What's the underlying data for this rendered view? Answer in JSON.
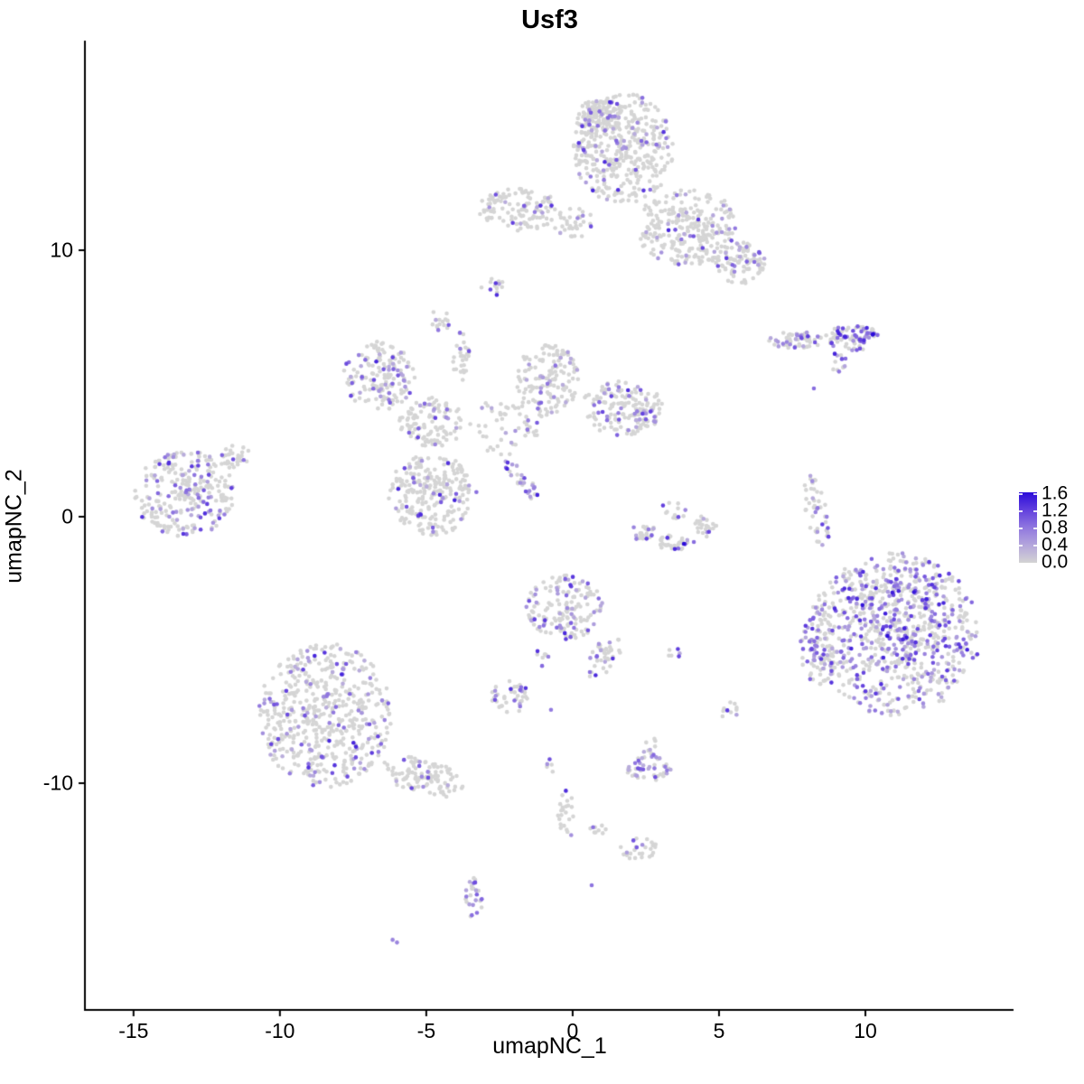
{
  "title": "Usf3",
  "chart_data": {
    "type": "scatter",
    "title": "Usf3",
    "xlabel": "umapNC_1",
    "ylabel": "umapNC_2",
    "xlim": [
      -16.63,
      15.06
    ],
    "ylim": [
      -18.51,
      17.86
    ],
    "xticks": [
      -15,
      -10,
      -5,
      0,
      5,
      10
    ],
    "xtick_labels": [
      "-15",
      "-10",
      "-5",
      "0",
      "5",
      "10"
    ],
    "yticks": [
      -10,
      0,
      10
    ],
    "ytick_labels": [
      "-10",
      "0",
      "10"
    ],
    "grid": false,
    "legend_position": "right",
    "colorbar": {
      "ticks": [
        1.6,
        1.2,
        0.8,
        0.4,
        0.0
      ],
      "tick_labels": [
        "1.6",
        "1.2",
        "0.8",
        "0.4",
        "0.0"
      ],
      "vmin": 0.0,
      "vmax": 1.65,
      "gradient_stops": [
        "#D3D3D3",
        "#B4A6DC",
        "#9077DF",
        "#6240DE",
        "#2B0CD9"
      ]
    },
    "point_color_zero": "#D5D5D5",
    "point_radius": 2.3,
    "clusters": [
      {
        "x": 1.73,
        "y": 13.8,
        "rx": 1.7,
        "ry": 2.1,
        "n": 430,
        "frac": 0.13
      },
      {
        "x": 0.8,
        "y": 14.98,
        "rx": 0.77,
        "ry": 0.75,
        "n": 80,
        "frac": 0.12
      },
      {
        "x": 3.95,
        "y": 10.85,
        "rx": 1.79,
        "ry": 1.42,
        "n": 260,
        "frac": 0.12
      },
      {
        "x": 5.74,
        "y": 9.49,
        "rx": 0.86,
        "ry": 0.81,
        "n": 90,
        "frac": 0.18
      },
      {
        "x": -1.82,
        "y": 11.53,
        "rx": 1.42,
        "ry": 0.81,
        "n": 120,
        "frac": 0.09
      },
      {
        "x": 0.06,
        "y": 11.02,
        "rx": 0.74,
        "ry": 0.54,
        "n": 35,
        "frac": 0.1
      },
      {
        "x": -2.72,
        "y": 8.64,
        "rx": 0.4,
        "ry": 0.34,
        "n": 14,
        "frac": 0.3
      },
      {
        "x": -4.54,
        "y": 7.36,
        "rx": 0.37,
        "ry": 0.41,
        "n": 15,
        "frac": 0.35
      },
      {
        "x": 7.72,
        "y": 6.61,
        "rx": 1.02,
        "ry": 0.34,
        "n": 55,
        "frac": 0.35
      },
      {
        "x": 9.57,
        "y": 6.71,
        "rx": 0.93,
        "ry": 0.47,
        "n": 85,
        "frac": 0.55,
        "hot": true
      },
      {
        "x": 9.07,
        "y": 5.8,
        "rx": 0.34,
        "ry": 0.37,
        "n": 12,
        "frac": 0.5
      },
      {
        "x": -6.6,
        "y": 5.29,
        "rx": 1.23,
        "ry": 1.29,
        "n": 160,
        "frac": 0.22
      },
      {
        "x": -4.81,
        "y": 3.53,
        "rx": 1.11,
        "ry": 0.95,
        "n": 110,
        "frac": 0.1
      },
      {
        "x": -3.8,
        "y": 6.03,
        "rx": 0.31,
        "ry": 0.95,
        "n": 30,
        "frac": 0.05
      },
      {
        "x": -0.86,
        "y": 5.15,
        "rx": 1.05,
        "ry": 1.42,
        "n": 150,
        "frac": 0.13
      },
      {
        "x": 1.67,
        "y": 4.07,
        "rx": 1.42,
        "ry": 1.02,
        "n": 150,
        "frac": 0.18
      },
      {
        "x": 2.72,
        "y": 3.86,
        "rx": 0.37,
        "ry": 0.41,
        "n": 14,
        "frac": 0.65,
        "hot": true
      },
      {
        "x": -4.81,
        "y": 0.81,
        "rx": 1.54,
        "ry": 1.53,
        "n": 250,
        "frac": 0.12
      },
      {
        "x": -1.76,
        "y": 1.36,
        "rx": 0.93,
        "ry": 0.27,
        "rot": -52,
        "n": 30,
        "frac": 0.55
      },
      {
        "x": -2.28,
        "y": 3.39,
        "rx": 1.23,
        "ry": 1.08,
        "n": 55,
        "frac": 0.1
      },
      {
        "x": -13.24,
        "y": 0.85,
        "rx": 1.73,
        "ry": 1.63,
        "n": 270,
        "frac": 0.28
      },
      {
        "x": -11.54,
        "y": 2.24,
        "rx": 0.62,
        "ry": 0.44,
        "n": 30,
        "frac": 0.12
      },
      {
        "x": 2.44,
        "y": -0.58,
        "rx": 0.43,
        "ry": 0.34,
        "n": 25,
        "frac": 0.35
      },
      {
        "x": 3.46,
        "y": -0.98,
        "rx": 0.56,
        "ry": 0.31,
        "n": 35,
        "frac": 0.1
      },
      {
        "x": 4.51,
        "y": -0.37,
        "rx": 0.4,
        "ry": 0.41,
        "n": 25,
        "frac": 0.12
      },
      {
        "x": 3.43,
        "y": 0.24,
        "rx": 0.77,
        "ry": 0.34,
        "n": 12,
        "frac": 0.15
      },
      {
        "x": 8.36,
        "y": 0.14,
        "rx": 0.4,
        "ry": 1.42,
        "rot": 10,
        "n": 45,
        "frac": 0.22
      },
      {
        "x": 10.99,
        "y": -4.41,
        "rx": 2.93,
        "ry": 3.05,
        "n": 680,
        "frac": 0.4
      },
      {
        "x": 11.3,
        "y": -3.66,
        "rx": 1.7,
        "ry": 1.69,
        "n": 180,
        "frac": 0.5,
        "hot": true
      },
      {
        "x": 8.4,
        "y": -4.88,
        "rx": 0.62,
        "ry": 1.63,
        "n": 75,
        "frac": 0.25
      },
      {
        "x": -0.28,
        "y": -3.39,
        "rx": 1.3,
        "ry": 1.22,
        "n": 160,
        "frac": 0.3
      },
      {
        "x": 1.05,
        "y": -5.25,
        "rx": 0.49,
        "ry": 0.88,
        "rot": -30,
        "n": 40,
        "frac": 0.3
      },
      {
        "x": -1.05,
        "y": -5.25,
        "rx": 0.25,
        "ry": 0.41,
        "n": 8,
        "frac": 0.4
      },
      {
        "x": 3.52,
        "y": -5.08,
        "rx": 0.31,
        "ry": 0.24,
        "n": 6,
        "frac": 0.35
      },
      {
        "x": -8.46,
        "y": -7.46,
        "rx": 2.28,
        "ry": 2.71,
        "n": 540,
        "frac": 0.2
      },
      {
        "x": -5.12,
        "y": -9.76,
        "rx": 1.42,
        "ry": 0.68,
        "rot": -18,
        "n": 110,
        "frac": 0.18
      },
      {
        "x": -2.13,
        "y": -6.78,
        "rx": 0.68,
        "ry": 0.61,
        "n": 42,
        "frac": 0.3
      },
      {
        "x": 5.37,
        "y": -7.32,
        "rx": 0.28,
        "ry": 0.44,
        "n": 10,
        "frac": 0.4
      },
      {
        "x": 2.59,
        "y": -9.46,
        "rx": 0.77,
        "ry": 0.47,
        "n": 45,
        "frac": 0.6
      },
      {
        "x": 2.65,
        "y": -8.61,
        "rx": 0.25,
        "ry": 0.44,
        "n": 10,
        "frac": 0.15
      },
      {
        "x": -0.74,
        "y": -9.39,
        "rx": 0.22,
        "ry": 0.31,
        "n": 5,
        "frac": 0.5
      },
      {
        "x": -0.25,
        "y": -10.98,
        "rx": 0.28,
        "ry": 0.95,
        "n": 22,
        "frac": 0.08
      },
      {
        "x": 0.99,
        "y": -11.76,
        "rx": 0.43,
        "ry": 0.17,
        "n": 9,
        "frac": 0.25
      },
      {
        "x": 2.28,
        "y": -12.47,
        "rx": 0.65,
        "ry": 0.41,
        "n": 28,
        "frac": 0.35
      },
      {
        "x": -3.4,
        "y": -14.37,
        "rx": 0.34,
        "ry": 0.88,
        "n": 26,
        "frac": 0.45
      }
    ],
    "extra_points": [
      {
        "x": 3.8,
        "y": -1.02,
        "v": 1.65
      },
      {
        "x": 4.14,
        "y": -0.95,
        "v": 0.9
      },
      {
        "x": 8.24,
        "y": 4.81,
        "v": 0.9
      },
      {
        "x": -0.74,
        "y": -7.25,
        "v": 0.8
      },
      {
        "x": -6.15,
        "y": -15.88,
        "v": 0.7
      },
      {
        "x": -6.0,
        "y": -15.98,
        "v": 0.7
      },
      {
        "x": 0.65,
        "y": -13.83,
        "v": 0.85
      },
      {
        "x": -0.05,
        "y": -11.95,
        "v": 0.6
      }
    ]
  }
}
